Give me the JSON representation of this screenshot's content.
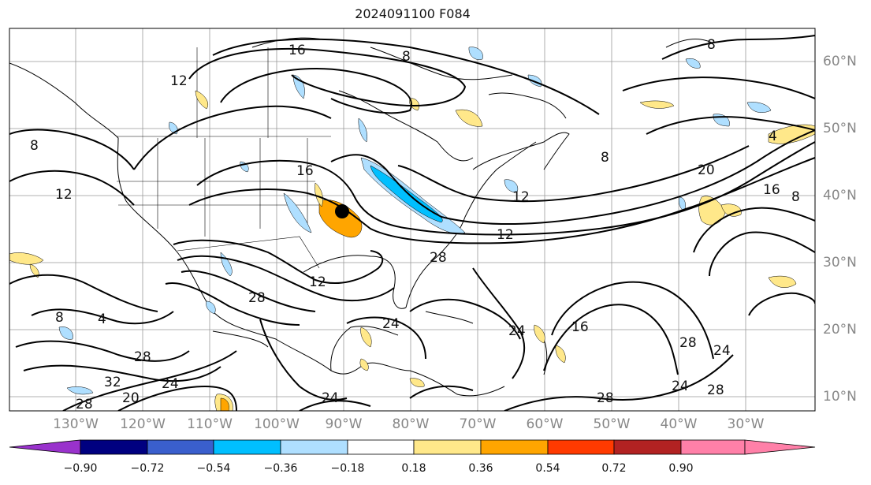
{
  "title": "2024091100 F084",
  "longitude_labels": [
    "130°W",
    "120°W",
    "110°W",
    "100°W",
    "90°W",
    "80°W",
    "70°W",
    "60°W",
    "50°W",
    "40°W",
    "30°W"
  ],
  "latitude_labels": [
    "60°N",
    "50°N",
    "40°N",
    "30°N",
    "20°N",
    "10°N"
  ],
  "colorbar": {
    "ticks": [
      "−0.90",
      "−0.72",
      "−0.54",
      "−0.36",
      "−0.18",
      "0.18",
      "0.36",
      "0.54",
      "0.72",
      "0.90"
    ],
    "colors": [
      "#9932cc",
      "#000080",
      "#3a5fcd",
      "#00bfff",
      "#afdfff",
      "#ffffff",
      "#ffe88a",
      "#ffa500",
      "#ff3a00",
      "#b22222",
      "#ff80a8"
    ]
  },
  "contour_labels": [
    "16",
    "8",
    "12",
    "8",
    "12",
    "16",
    "12",
    "4",
    "8",
    "20",
    "16",
    "8",
    "12",
    "28",
    "12",
    "28",
    "4",
    "8",
    "28",
    "32",
    "24",
    "28",
    "20",
    "24",
    "24",
    "24",
    "16",
    "28",
    "24",
    "28",
    "24",
    "28",
    "8"
  ],
  "colors": {
    "contour": "#000000",
    "land_border": "#000000",
    "grid": "#999999"
  }
}
